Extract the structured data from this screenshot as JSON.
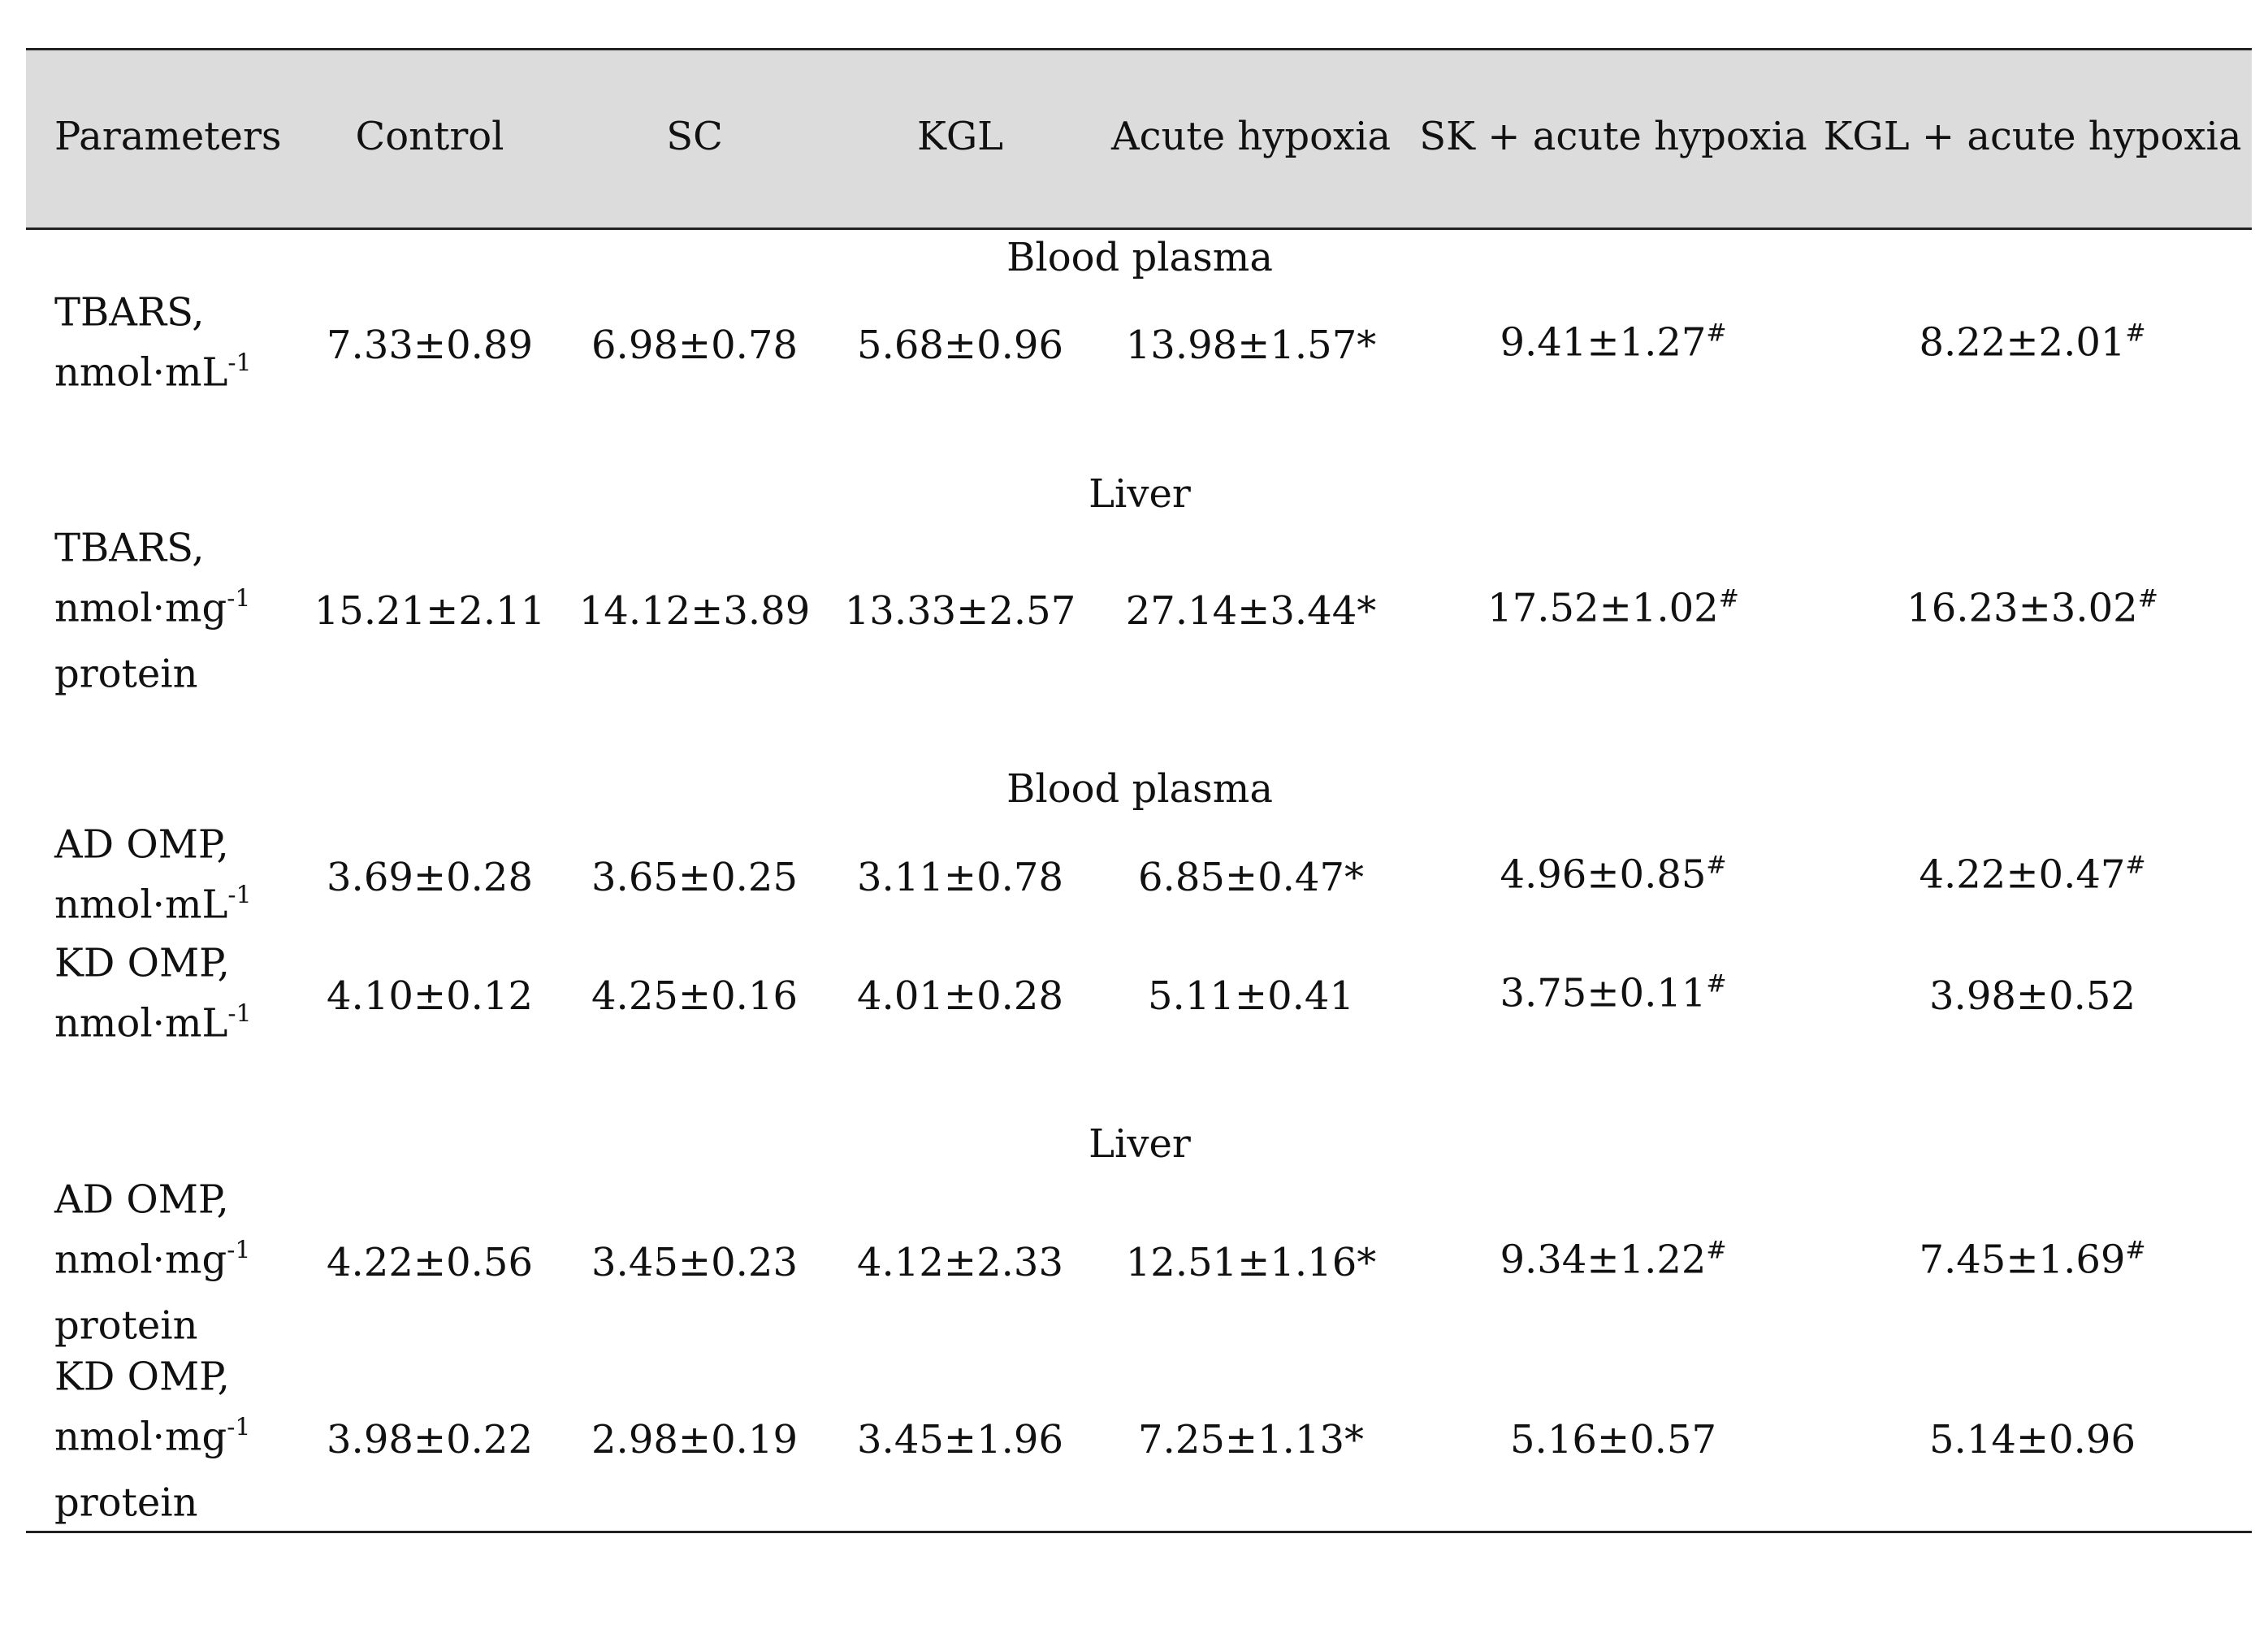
{
  "header": [
    "Parameters",
    "Control",
    "SC",
    "KGL",
    "Acute hypoxia",
    "SK + acute hypoxia",
    "KGL + acute hypoxia"
  ],
  "sections": [
    {
      "label": "Blood plasma",
      "rows": [
        {
          "param_lines": [
            "TBARS,"
          ],
          "param_unit": "nmol·mL",
          "param_exp": "-1",
          "param_after": "",
          "values": [
            {
              "v": "7.33±0.89",
              "m": ""
            },
            {
              "v": "6.98±0.78",
              "m": ""
            },
            {
              "v": "5.68±0.96",
              "m": ""
            },
            {
              "v": "13.98±1.57*",
              "m": ""
            },
            {
              "v": "9.41±1.27",
              "m": "#"
            },
            {
              "v": "8.22±2.01",
              "m": "#"
            }
          ]
        }
      ]
    },
    {
      "label": "Liver",
      "rows": [
        {
          "param_lines": [
            "TBARS,"
          ],
          "param_unit": "nmol·mg",
          "param_exp": "-1",
          "param_after": "protein",
          "values": [
            {
              "v": "15.21±2.11",
              "m": ""
            },
            {
              "v": "14.12±3.89",
              "m": ""
            },
            {
              "v": "13.33±2.57",
              "m": ""
            },
            {
              "v": "27.14±3.44*",
              "m": ""
            },
            {
              "v": "17.52±1.02",
              "m": "#"
            },
            {
              "v": "16.23±3.02",
              "m": "#"
            }
          ]
        }
      ]
    },
    {
      "label": "Blood plasma",
      "rows": [
        {
          "param_lines": [
            "AD OMP,"
          ],
          "param_unit": "nmol·mL",
          "param_exp": "-1",
          "param_after": "",
          "values": [
            {
              "v": "3.69±0.28",
              "m": ""
            },
            {
              "v": "3.65±0.25",
              "m": ""
            },
            {
              "v": "3.11±0.78",
              "m": ""
            },
            {
              "v": "6.85±0.47*",
              "m": ""
            },
            {
              "v": "4.96±0.85",
              "m": "#"
            },
            {
              "v": "4.22±0.47",
              "m": "#"
            }
          ]
        },
        {
          "param_lines": [
            "KD OMP,"
          ],
          "param_unit": "nmol·mL",
          "param_exp": "-1",
          "param_after": "",
          "values": [
            {
              "v": "4.10±0.12",
              "m": ""
            },
            {
              "v": "4.25±0.16",
              "m": ""
            },
            {
              "v": "4.01±0.28",
              "m": ""
            },
            {
              "v": "5.11±0.41",
              "m": ""
            },
            {
              "v": "3.75±0.11",
              "m": "#"
            },
            {
              "v": "3.98±0.52",
              "m": ""
            }
          ]
        }
      ]
    },
    {
      "label": "Liver",
      "rows": [
        {
          "param_lines": [
            "AD OMP,"
          ],
          "param_unit": "nmol·mg",
          "param_exp": "-1",
          "param_after": "protein",
          "values": [
            {
              "v": "4.22±0.56",
              "m": ""
            },
            {
              "v": "3.45±0.23",
              "m": ""
            },
            {
              "v": "4.12±2.33",
              "m": ""
            },
            {
              "v": "12.51±1.16*",
              "m": ""
            },
            {
              "v": "9.34±1.22",
              "m": "#"
            },
            {
              "v": "7.45±1.69",
              "m": "#"
            }
          ]
        },
        {
          "param_lines": [
            "KD OMP,"
          ],
          "param_unit": "nmol·mg",
          "param_exp": "-1",
          "param_after": "protein",
          "values": [
            {
              "v": "3.98±0.22",
              "m": ""
            },
            {
              "v": "2.98±0.19",
              "m": ""
            },
            {
              "v": "3.45±1.96",
              "m": ""
            },
            {
              "v": "7.25±1.13*",
              "m": ""
            },
            {
              "v": "5.16±0.57",
              "m": ""
            },
            {
              "v": "5.14±0.96",
              "m": ""
            }
          ]
        }
      ]
    }
  ]
}
